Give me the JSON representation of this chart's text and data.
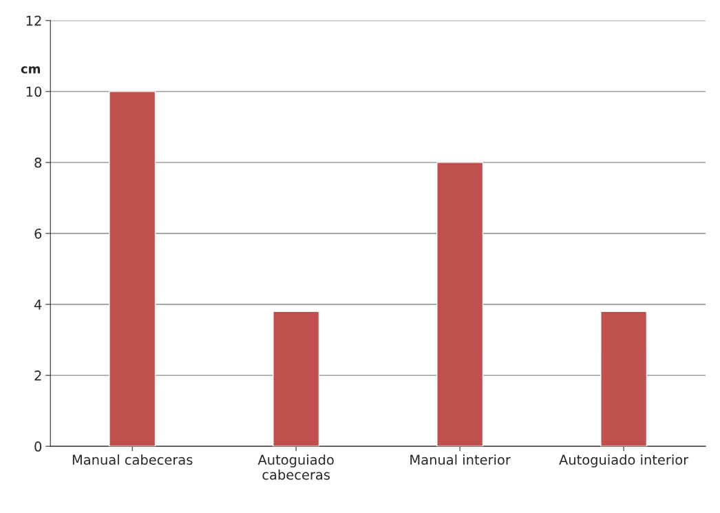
{
  "chart_data": {
    "type": "bar",
    "ylabel": "cm",
    "categories": [
      "Manual cabeceras",
      "Autoguiado\ncabeceras",
      "Manual interior",
      "Autoguiado interior"
    ],
    "values": [
      10,
      3.8,
      8,
      3.8
    ],
    "color": "#c0504d",
    "ylim": [
      0,
      12
    ],
    "yticks": [
      0,
      2,
      4,
      6,
      8,
      10,
      12
    ],
    "grid": "y",
    "legend": false
  }
}
